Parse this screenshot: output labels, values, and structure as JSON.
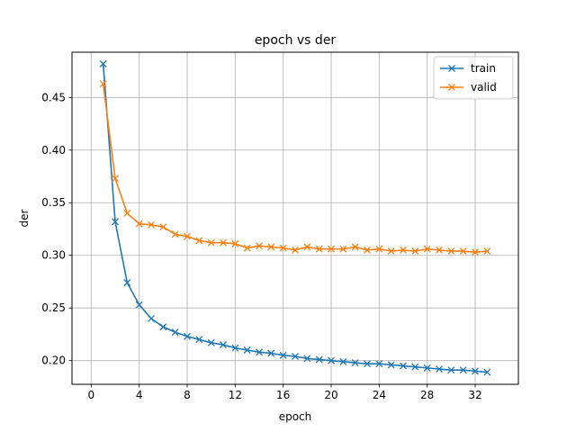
{
  "chart_data": {
    "type": "line",
    "title": "epoch vs der",
    "xlabel": "epoch",
    "ylabel": "der",
    "xlim": [
      -1.6,
      35.6
    ],
    "ylim": [
      0.1775,
      0.493
    ],
    "xticks": [
      0,
      4,
      8,
      12,
      16,
      20,
      24,
      28,
      32
    ],
    "yticks": [
      0.2,
      0.25,
      0.3,
      0.35,
      0.4,
      0.45
    ],
    "ytick_labels": [
      "0.20",
      "0.25",
      "0.30",
      "0.35",
      "0.40",
      "0.45"
    ],
    "grid": true,
    "legend": "top-right",
    "x": [
      1,
      2,
      3,
      4,
      5,
      6,
      7,
      8,
      9,
      10,
      11,
      12,
      13,
      14,
      15,
      16,
      17,
      18,
      19,
      20,
      21,
      22,
      23,
      24,
      25,
      26,
      27,
      28,
      29,
      30,
      31,
      32,
      33
    ],
    "series": [
      {
        "name": "train",
        "color": "#1f77b4",
        "marker": "x",
        "values": [
          0.482,
          0.332,
          0.274,
          0.253,
          0.24,
          0.232,
          0.227,
          0.223,
          0.22,
          0.217,
          0.215,
          0.212,
          0.21,
          0.208,
          0.207,
          0.205,
          0.204,
          0.202,
          0.201,
          0.2,
          0.199,
          0.198,
          0.197,
          0.197,
          0.196,
          0.195,
          0.194,
          0.193,
          0.192,
          0.191,
          0.191,
          0.19,
          0.189
        ]
      },
      {
        "name": "valid",
        "color": "#ff7f0e",
        "marker": "x",
        "values": [
          0.463,
          0.373,
          0.34,
          0.33,
          0.329,
          0.327,
          0.32,
          0.318,
          0.314,
          0.312,
          0.312,
          0.311,
          0.307,
          0.309,
          0.308,
          0.307,
          0.305,
          0.308,
          0.306,
          0.306,
          0.306,
          0.308,
          0.305,
          0.306,
          0.304,
          0.305,
          0.304,
          0.306,
          0.305,
          0.304,
          0.304,
          0.303,
          0.304
        ]
      }
    ]
  }
}
